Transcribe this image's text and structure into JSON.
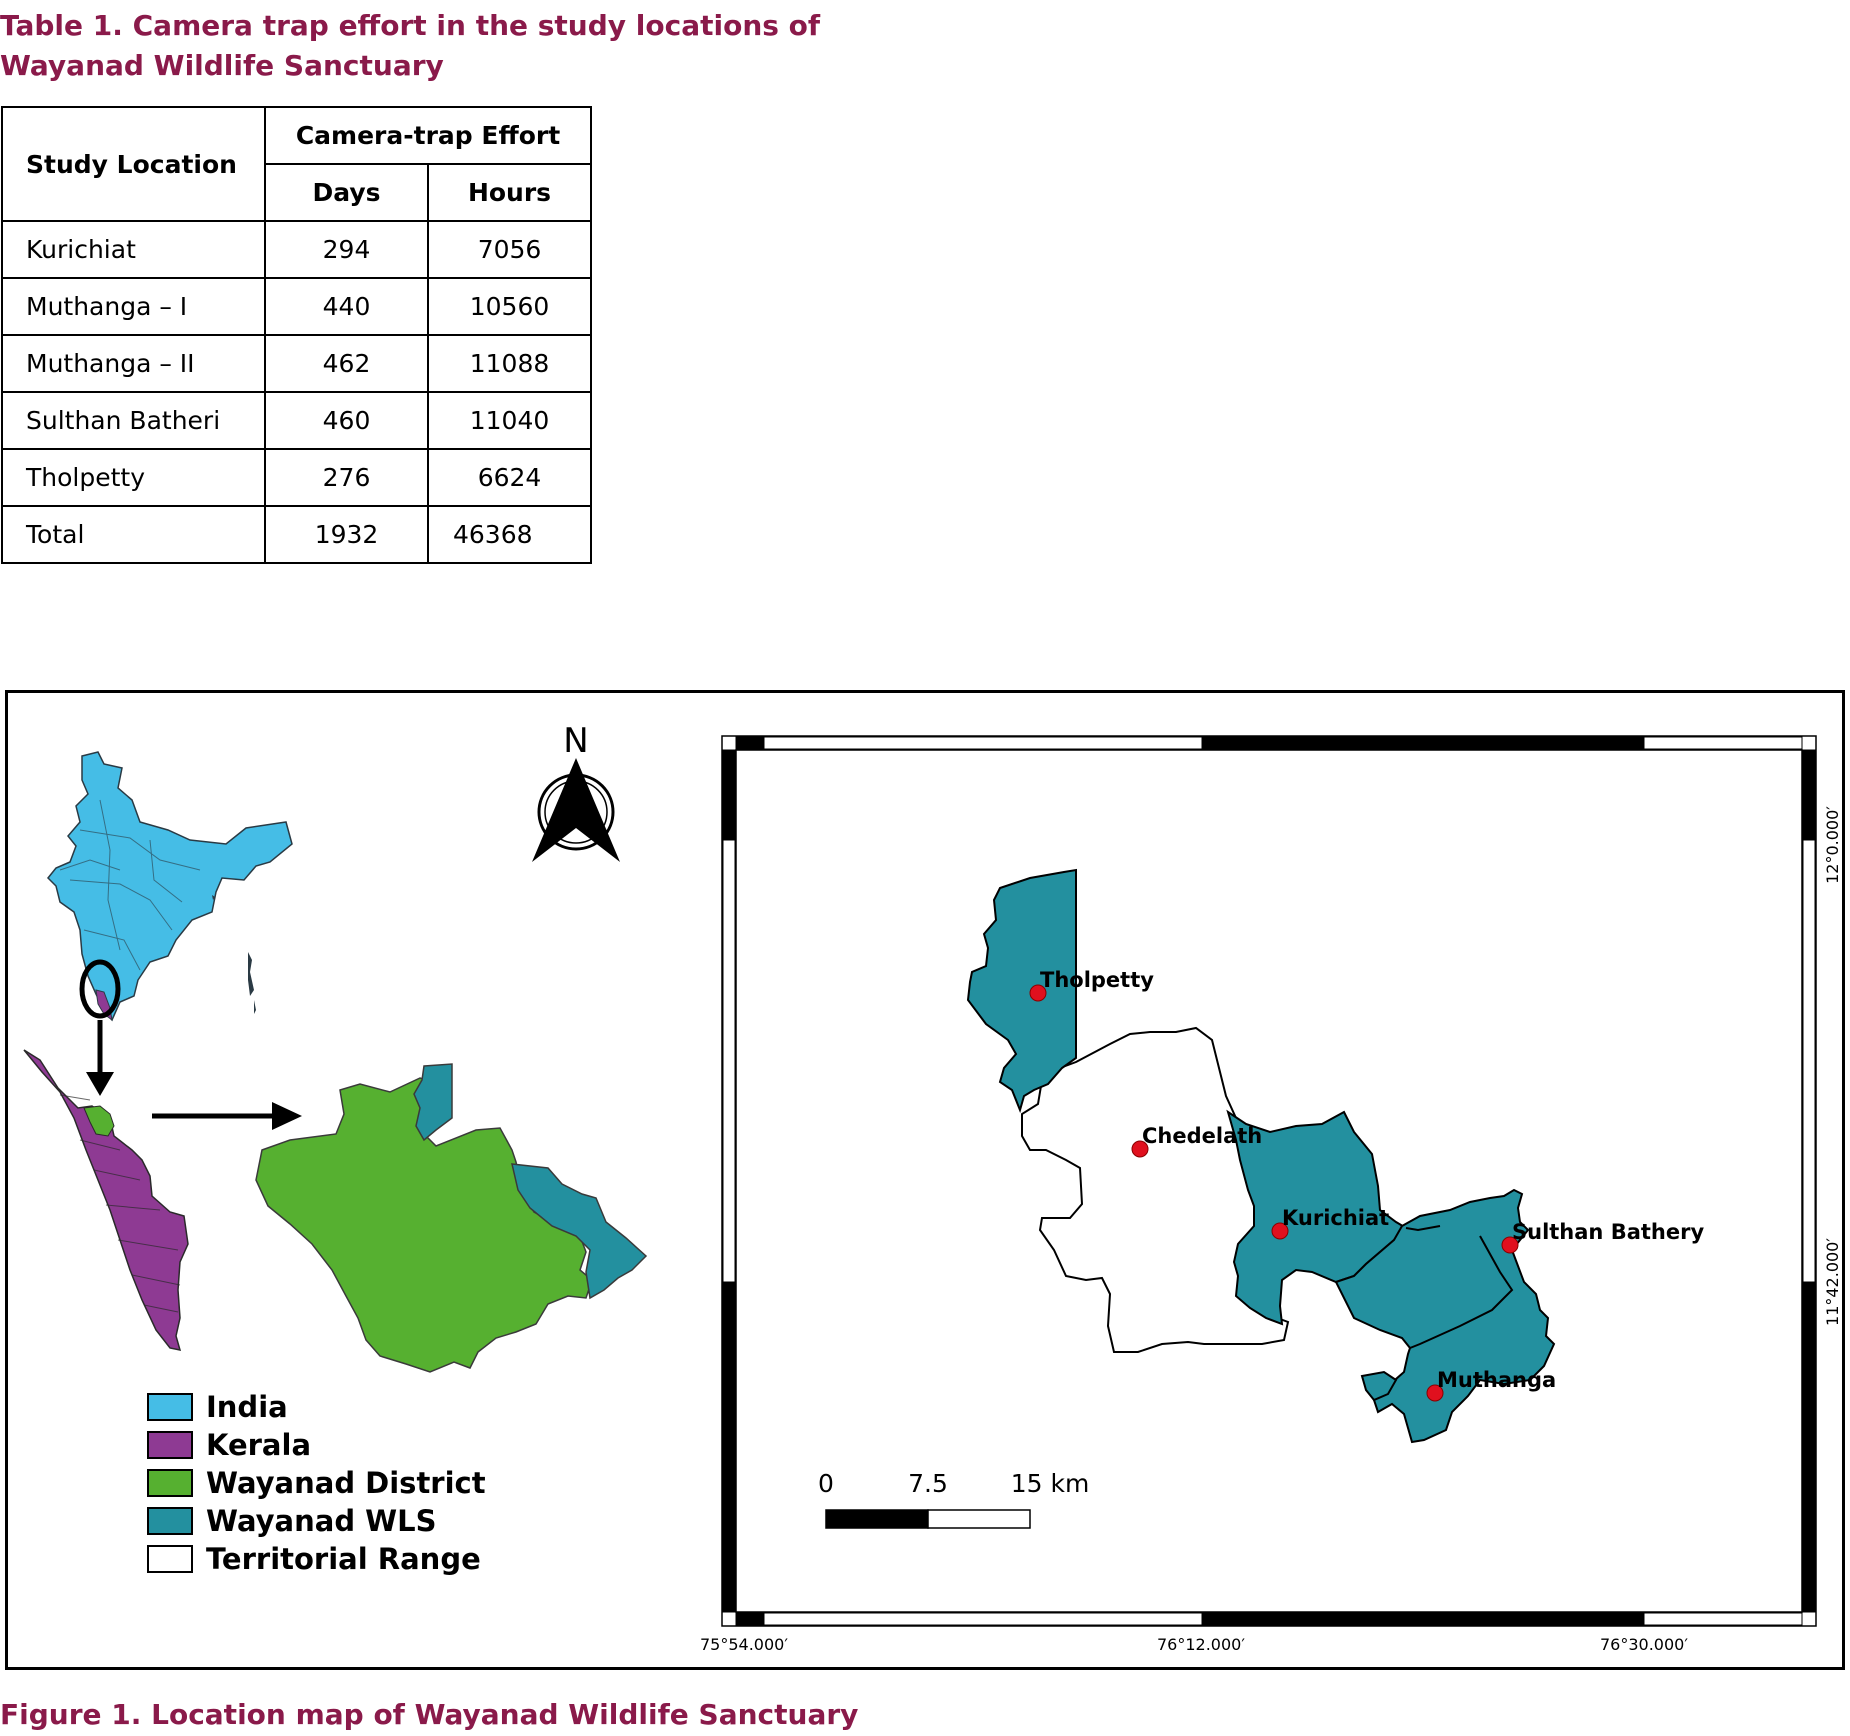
{
  "table": {
    "caption": "Table 1. Camera trap effort in the study locations of Wayanad Wildlife Sanctuary",
    "headers": {
      "location": "Study Location",
      "effort": "Camera-trap Effort",
      "days": "Days",
      "hours": "Hours"
    },
    "rows": [
      {
        "location": "Kurichiat",
        "days": "294",
        "hours": "7056"
      },
      {
        "location": "Muthanga – I",
        "days": "440",
        "hours": "10560"
      },
      {
        "location": "Muthanga – II",
        "days": "462",
        "hours": "11088"
      },
      {
        "location": "Sulthan Batheri",
        "days": "460",
        "hours": "11040"
      },
      {
        "location": "Tholpetty",
        "days": "276",
        "hours": "6624"
      }
    ],
    "total": {
      "location": "Total",
      "days": "1932",
      "hours": "46368"
    }
  },
  "figure": {
    "caption": "Figure 1. Location map of Wayanad Wildlife Sanctuary",
    "north_label": "N",
    "legend": [
      {
        "label": "India",
        "color": "#45bde6"
      },
      {
        "label": "Kerala",
        "color": "#8e3a93"
      },
      {
        "label": "Wayanad District",
        "color": "#56b030"
      },
      {
        "label": "Wayanad WLS",
        "color": "#23909f"
      },
      {
        "label": "Territorial Range",
        "color": "#ffffff"
      }
    ],
    "places": {
      "tholpetty": "Tholpetty",
      "chedelath": "Chedelath",
      "kurichiat": "Kurichiat",
      "sulthan_bathery": "Sulthan Bathery",
      "muthanga": "Muthanga"
    },
    "scale": {
      "zero": "0",
      "mid": "7.5",
      "end": "15 km"
    },
    "longitudes": [
      "75°54.000′",
      "76°12.000′",
      "76°30.000′"
    ],
    "latitudes": [
      "12°0.000′",
      "11°42.000′"
    ],
    "colors": {
      "caption": "#8a1a4a",
      "site_marker": "#e0101e"
    }
  }
}
